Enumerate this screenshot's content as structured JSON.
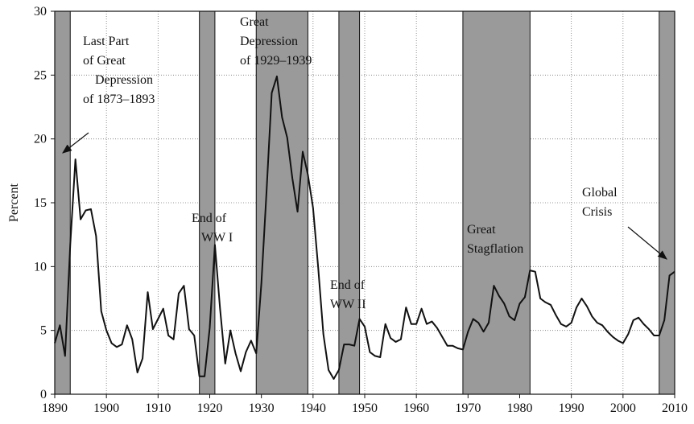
{
  "chart_data": {
    "type": "line",
    "y_label": "Percent",
    "x": [
      1890,
      1891,
      1892,
      1893,
      1894,
      1895,
      1896,
      1897,
      1898,
      1899,
      1900,
      1901,
      1902,
      1903,
      1904,
      1905,
      1906,
      1907,
      1908,
      1909,
      1910,
      1911,
      1912,
      1913,
      1914,
      1915,
      1916,
      1917,
      1918,
      1919,
      1920,
      1921,
      1922,
      1923,
      1924,
      1925,
      1926,
      1927,
      1928,
      1929,
      1930,
      1931,
      1932,
      1933,
      1934,
      1935,
      1936,
      1937,
      1938,
      1939,
      1940,
      1941,
      1942,
      1943,
      1944,
      1945,
      1946,
      1947,
      1948,
      1949,
      1950,
      1951,
      1952,
      1953,
      1954,
      1955,
      1956,
      1957,
      1958,
      1959,
      1960,
      1961,
      1962,
      1963,
      1964,
      1965,
      1966,
      1967,
      1968,
      1969,
      1970,
      1971,
      1972,
      1973,
      1974,
      1975,
      1976,
      1977,
      1978,
      1979,
      1980,
      1981,
      1982,
      1983,
      1984,
      1985,
      1986,
      1987,
      1988,
      1989,
      1990,
      1991,
      1992,
      1993,
      1994,
      1995,
      1996,
      1997,
      1998,
      1999,
      2000,
      2001,
      2002,
      2003,
      2004,
      2005,
      2006,
      2007,
      2008,
      2009,
      2010
    ],
    "series": [
      {
        "color": "#111111",
        "values": [
          4.0,
          5.4,
          3.0,
          11.7,
          18.4,
          13.7,
          14.4,
          14.5,
          12.4,
          6.5,
          5.0,
          4.0,
          3.7,
          3.9,
          5.4,
          4.3,
          1.7,
          2.8,
          8.0,
          5.1,
          5.9,
          6.7,
          4.6,
          4.3,
          7.9,
          8.5,
          5.1,
          4.6,
          1.4,
          1.4,
          5.2,
          11.7,
          6.7,
          2.4,
          5.0,
          3.2,
          1.8,
          3.3,
          4.2,
          3.2,
          8.7,
          15.9,
          23.6,
          24.9,
          21.7,
          20.1,
          16.9,
          14.3,
          19.0,
          17.2,
          14.6,
          9.9,
          4.7,
          1.9,
          1.2,
          1.9,
          3.9,
          3.9,
          3.8,
          5.9,
          5.3,
          3.3,
          3.0,
          2.9,
          5.5,
          4.4,
          4.1,
          4.3,
          6.8,
          5.5,
          5.5,
          6.7,
          5.5,
          5.7,
          5.2,
          4.5,
          3.8,
          3.8,
          3.6,
          3.5,
          4.9,
          5.9,
          5.6,
          4.9,
          5.6,
          8.5,
          7.7,
          7.1,
          6.1,
          5.8,
          7.1,
          7.6,
          9.7,
          9.6,
          7.5,
          7.2,
          7.0,
          6.2,
          5.5,
          5.3,
          5.6,
          6.8,
          7.5,
          6.9,
          6.1,
          5.6,
          5.4,
          4.9,
          4.5,
          4.2,
          4.0,
          4.7,
          5.8,
          6.0,
          5.5,
          5.1,
          4.6,
          4.6,
          5.8,
          9.3,
          9.6
        ]
      }
    ],
    "shaded_periods": [
      [
        1890,
        1893
      ],
      [
        1918,
        1921
      ],
      [
        1929,
        1939
      ],
      [
        1945,
        1949
      ],
      [
        1969,
        1982
      ],
      [
        2007,
        2010
      ]
    ],
    "shade_color": "#9a9a9a",
    "annotations": [
      {
        "lines": [
          "Last Part",
          "of Great",
          "Depression",
          "of 1873–1893"
        ]
      },
      {
        "lines": [
          "Great",
          "Depression",
          "of 1929–1939"
        ]
      },
      {
        "lines": [
          "End of",
          "WW I"
        ]
      },
      {
        "lines": [
          "End of",
          "WW II"
        ]
      },
      {
        "lines": [
          "Great",
          "Stagflation"
        ]
      },
      {
        "lines": [
          "Global",
          "Crisis"
        ]
      }
    ],
    "xlim": [
      1890,
      2010
    ],
    "ylim": [
      0,
      30
    ],
    "xticks": [
      1890,
      1900,
      1910,
      1920,
      1930,
      1940,
      1950,
      1960,
      1970,
      1980,
      1990,
      2000,
      2010
    ],
    "yticks": [
      0,
      5,
      10,
      15,
      20,
      25,
      30
    ],
    "grid": true
  }
}
